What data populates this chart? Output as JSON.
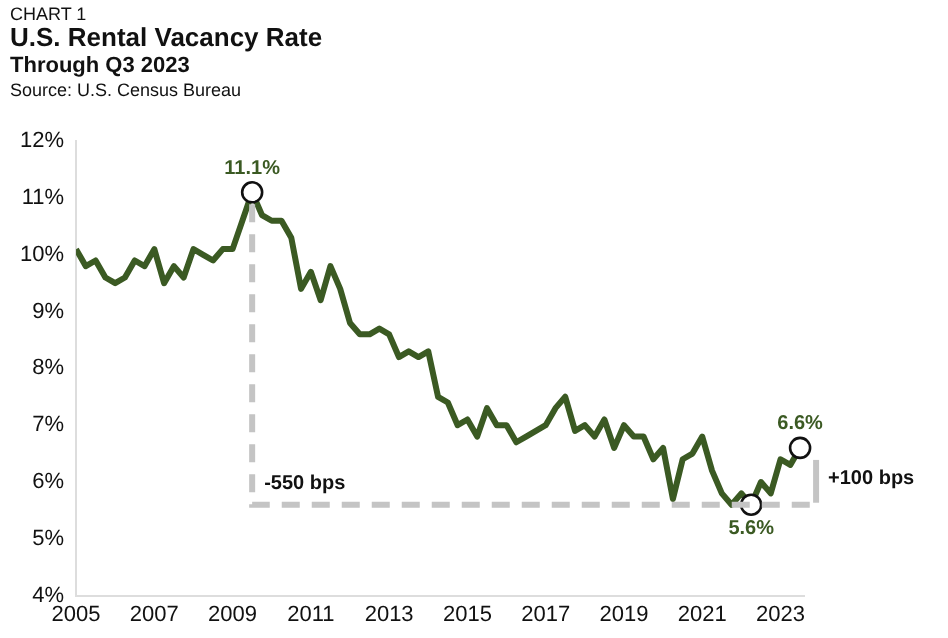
{
  "chart_data": {
    "type": "line",
    "title": "U.S. Rental Vacancy Rate",
    "subtitle": "Through Q3 2023",
    "annotations": [
      "CHART 1",
      "Source: U.S. Census Bureau",
      {
        "text": "11.1%",
        "x": 2009.5,
        "y": 11.1
      },
      {
        "text": "5.6%",
        "x": 2022.25,
        "y": 5.6
      },
      {
        "text": "6.6%",
        "x": 2023.5,
        "y": 6.6
      },
      "-550 bps",
      "+100 bps"
    ],
    "series": [
      {
        "color": "#3b5a23",
        "x": [
          2005,
          2005.25,
          2005.5,
          2005.75,
          2006,
          2006.25,
          2006.5,
          2006.75,
          2007,
          2007.25,
          2007.5,
          2007.75,
          2008,
          2008.25,
          2008.5,
          2008.75,
          2009,
          2009.25,
          2009.5,
          2009.75,
          2010,
          2010.25,
          2010.5,
          2010.75,
          2011,
          2011.25,
          2011.5,
          2011.75,
          2012,
          2012.25,
          2012.5,
          2012.75,
          2013,
          2013.25,
          2013.5,
          2013.75,
          2014,
          2014.25,
          2014.5,
          2014.75,
          2015,
          2015.25,
          2015.5,
          2015.75,
          2016,
          2016.25,
          2016.5,
          2016.75,
          2017,
          2017.25,
          2017.5,
          2017.75,
          2018,
          2018.25,
          2018.5,
          2018.75,
          2019,
          2019.25,
          2019.5,
          2019.75,
          2020,
          2020.25,
          2020.5,
          2020.75,
          2021,
          2021.25,
          2021.5,
          2021.75,
          2022,
          2022.25,
          2022.5,
          2022.75,
          2023,
          2023.25,
          2023.5
        ],
        "values": [
          10.1,
          9.8,
          9.9,
          9.6,
          9.5,
          9.6,
          9.9,
          9.8,
          10.1,
          9.5,
          9.8,
          9.6,
          10.1,
          10.0,
          9.9,
          10.1,
          10.1,
          10.6,
          11.1,
          10.7,
          10.6,
          10.6,
          10.3,
          9.4,
          9.7,
          9.2,
          9.8,
          9.4,
          8.8,
          8.6,
          8.6,
          8.7,
          8.6,
          8.2,
          8.3,
          8.2,
          8.3,
          7.5,
          7.4,
          7.0,
          7.1,
          6.8,
          7.3,
          7.0,
          7.0,
          6.7,
          6.8,
          6.9,
          7.0,
          7.3,
          7.5,
          6.9,
          7.0,
          6.8,
          7.1,
          6.6,
          7.0,
          6.8,
          6.8,
          6.4,
          6.6,
          5.7,
          6.4,
          6.5,
          6.8,
          6.2,
          5.8,
          5.6,
          5.8,
          5.6,
          6.0,
          5.8,
          6.4,
          6.3,
          6.6
        ]
      },
      {
        "type": "scatter",
        "color": "#ffffff",
        "marker": "circle",
        "x": [
          2009.5,
          2022.25,
          2023.5
        ],
        "values": [
          11.1,
          5.6,
          6.6
        ]
      }
    ],
    "xlim": [
      2005,
      2023.6
    ],
    "xticks": [
      2005,
      2007,
      2009,
      2011,
      2013,
      2015,
      2017,
      2019,
      2021,
      2023
    ],
    "ylim": [
      4,
      12
    ],
    "yticks": [
      {
        "value": 4,
        "label": "4%"
      },
      {
        "value": 5,
        "label": "5%"
      },
      {
        "value": 6,
        "label": "6%"
      },
      {
        "value": 7,
        "label": "7%"
      },
      {
        "value": 8,
        "label": "8%"
      },
      {
        "value": 9,
        "label": "9%"
      },
      {
        "value": 10,
        "label": "10%"
      },
      {
        "value": 11,
        "label": "11%"
      },
      {
        "value": 12,
        "label": "12%"
      }
    ],
    "grid": false,
    "legend": false,
    "marker": "none",
    "line_style": "solid"
  }
}
